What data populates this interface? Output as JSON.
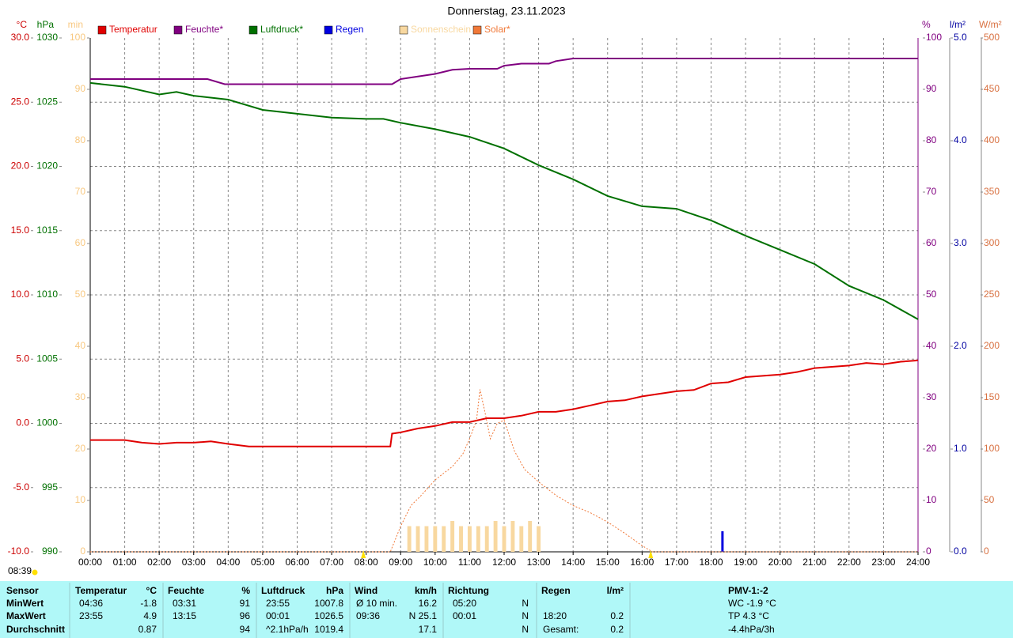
{
  "chart_data": {
    "type": "line",
    "title": "Donnerstag, 23.11.2023",
    "xlim": [
      0,
      24
    ],
    "xticks": [
      {
        "value": 0,
        "label": "00:00"
      },
      {
        "value": 1,
        "label": "01:00"
      },
      {
        "value": 2,
        "label": "02:00"
      },
      {
        "value": 3,
        "label": "03:00"
      },
      {
        "value": 4,
        "label": "04:00"
      },
      {
        "value": 5,
        "label": "05:00"
      },
      {
        "value": 6,
        "label": "06:00"
      },
      {
        "value": 7,
        "label": "07:00"
      },
      {
        "value": 8,
        "label": "08:00"
      },
      {
        "value": 9,
        "label": "09:00"
      },
      {
        "value": 10,
        "label": "10:00"
      },
      {
        "value": 11,
        "label": "11:00"
      },
      {
        "value": 12,
        "label": "12:00"
      },
      {
        "value": 13,
        "label": "13:00"
      },
      {
        "value": 14,
        "label": "14:00"
      },
      {
        "value": 15,
        "label": "15:00"
      },
      {
        "value": 16,
        "label": "16:00"
      },
      {
        "value": 17,
        "label": "17:00"
      },
      {
        "value": 18,
        "label": "18:00"
      },
      {
        "value": 19,
        "label": "19:00"
      },
      {
        "value": 20,
        "label": "20:00"
      },
      {
        "value": 21,
        "label": "21:00"
      },
      {
        "value": 22,
        "label": "22:00"
      },
      {
        "value": 23,
        "label": "23:00"
      },
      {
        "value": 24,
        "label": "24:00"
      }
    ],
    "grid": true,
    "timestamp": "08:39",
    "sun_markers": [
      7.92,
      16.25
    ],
    "axes": [
      {
        "unit": "°C",
        "side": "left",
        "color": "#cc0000",
        "lim": [
          -10,
          30
        ],
        "ticks": [
          {
            "value": 30,
            "label": "30.0"
          },
          {
            "value": 25,
            "label": "25.0"
          },
          {
            "value": 20,
            "label": "20.0"
          },
          {
            "value": 15,
            "label": "15.0"
          },
          {
            "value": 10,
            "label": "10.0"
          },
          {
            "value": 5,
            "label": "5.0"
          },
          {
            "value": 0,
            "label": "0.0"
          },
          {
            "value": -5,
            "label": "-5.0"
          },
          {
            "value": -10,
            "label": "-10.0"
          }
        ],
        "series": [
          {
            "name": "Temperatur",
            "type": "line",
            "color": "#e00000",
            "x": [
              0,
              1,
              1.5,
              2,
              2.5,
              3,
              3.5,
              4,
              4.6,
              5,
              6,
              7,
              8,
              8.7,
              8.75,
              9,
              9.5,
              10,
              10.5,
              11,
              11.5,
              12,
              12.5,
              13,
              13.5,
              14,
              14.5,
              15,
              15.5,
              16,
              16.5,
              17,
              17.5,
              18,
              18.5,
              19,
              19.5,
              20,
              20.5,
              21,
              21.5,
              22,
              22.5,
              23,
              23.5,
              24
            ],
            "values": [
              -1.3,
              -1.3,
              -1.5,
              -1.6,
              -1.5,
              -1.5,
              -1.4,
              -1.6,
              -1.8,
              -1.8,
              -1.8,
              -1.8,
              -1.8,
              -1.8,
              -0.8,
              -0.7,
              -0.4,
              -0.2,
              0.1,
              0.1,
              0.4,
              0.4,
              0.6,
              0.9,
              0.9,
              1.1,
              1.4,
              1.7,
              1.8,
              2.1,
              2.3,
              2.5,
              2.6,
              3.1,
              3.2,
              3.6,
              3.7,
              3.8,
              4.0,
              4.3,
              4.4,
              4.5,
              4.7,
              4.6,
              4.8,
              4.9
            ]
          }
        ]
      },
      {
        "unit": "%",
        "side": "right",
        "color": "#800080",
        "lim": [
          0,
          100
        ],
        "ticks": [
          0,
          10,
          20,
          30,
          40,
          50,
          60,
          70,
          80,
          90,
          100
        ],
        "series": [
          {
            "name": "Feuchte*",
            "type": "line",
            "color": "#800080",
            "x": [
              0,
              3.4,
              3.9,
              8.75,
              9,
              9.5,
              10,
              10.5,
              11,
              11.8,
              12,
              12.5,
              13.3,
              13.5,
              14,
              24
            ],
            "values": [
              92,
              92,
              91,
              91,
              92,
              92.5,
              93,
              93.8,
              94,
              94,
              94.6,
              95,
              95,
              95.5,
              96,
              96
            ]
          }
        ]
      },
      {
        "unit": "hPa",
        "side": "left",
        "color": "#007000",
        "lim": [
          990,
          1030
        ],
        "ticks": [
          1030,
          1025,
          1020,
          1015,
          1010,
          1005,
          1000,
          995,
          990
        ],
        "series": [
          {
            "name": "Luftdruck*",
            "type": "line",
            "color": "#007000",
            "x": [
              0,
              1,
              2,
              2.5,
              3,
              4,
              5,
              6,
              7,
              8,
              8.5,
              9,
              10,
              11,
              12,
              13,
              14,
              15,
              16,
              16.5,
              17,
              18,
              19,
              20,
              21,
              22,
              23,
              24
            ],
            "values": [
              1026.5,
              1026.2,
              1025.6,
              1025.8,
              1025.5,
              1025.2,
              1024.4,
              1024.1,
              1023.8,
              1023.7,
              1023.7,
              1023.4,
              1022.9,
              1022.3,
              1021.4,
              1020.1,
              1019.0,
              1017.7,
              1016.9,
              1016.8,
              1016.7,
              1015.8,
              1014.6,
              1013.5,
              1012.4,
              1010.7,
              1009.6,
              1008.1
            ]
          }
        ]
      },
      {
        "unit": "l/m²",
        "side": "right",
        "color": "#0000a0",
        "lim": [
          0,
          5
        ],
        "ticks": [
          {
            "value": 0,
            "label": "0.0"
          },
          {
            "value": 1,
            "label": "1.0"
          },
          {
            "value": 2,
            "label": "2.0"
          },
          {
            "value": 3,
            "label": "3.0"
          },
          {
            "value": 4,
            "label": "4.0"
          },
          {
            "value": 5,
            "label": "5.0"
          }
        ],
        "series": [
          {
            "name": "Regen",
            "type": "bar",
            "color": "#0000e0",
            "x": [
              18.33
            ],
            "values": [
              0.2
            ]
          }
        ]
      },
      {
        "unit": "min",
        "side": "left",
        "color": "#f8c880",
        "lim": [
          0,
          100
        ],
        "ticks": [
          100,
          90,
          80,
          70,
          60,
          50,
          40,
          30,
          20,
          10,
          0
        ],
        "series": [
          {
            "name": "Sonnenschein",
            "type": "bar",
            "color": "#f8d8a0",
            "x": [
              9.25,
              9.5,
              9.75,
              10,
              10.25,
              10.5,
              10.75,
              11,
              11.25,
              11.5,
              11.75,
              12,
              12.25,
              12.5,
              12.75,
              13
            ],
            "values": [
              5,
              5,
              5,
              5,
              5,
              6,
              5,
              5,
              5,
              5,
              6,
              5,
              6,
              5,
              6,
              5
            ]
          }
        ]
      },
      {
        "unit": "W/m²",
        "side": "right",
        "color": "#d87040",
        "lim": [
          0,
          500
        ],
        "ticks": [
          0,
          50,
          100,
          150,
          200,
          250,
          300,
          350,
          400,
          450,
          500
        ],
        "series": [
          {
            "name": "Solar*",
            "type": "line",
            "style": "dotted",
            "color": "#f07838",
            "x": [
              0,
              8.7,
              9.0,
              9.3,
              9.6,
              10,
              10.5,
              10.8,
              11,
              11.2,
              11.3,
              11.45,
              11.6,
              11.8,
              12,
              12.3,
              12.6,
              13,
              13.5,
              14,
              14.5,
              15,
              15.5,
              16,
              16.3,
              24
            ],
            "values": [
              0,
              0,
              25,
              45,
              55,
              70,
              83,
              95,
              110,
              128,
              158,
              135,
              110,
              125,
              128,
              98,
              80,
              68,
              55,
              45,
              38,
              29,
              18,
              6,
              0,
              0
            ]
          }
        ]
      }
    ]
  },
  "table": {
    "header": [
      "Sensor",
      "Temperatur",
      "°C",
      "Feuchte",
      "%",
      "Luftdruck",
      "hPa",
      "Wind",
      "km/h",
      "Richtung",
      null,
      "Regen",
      "l/m²",
      "PMV-1:-2"
    ],
    "rows": [
      [
        "MinWert",
        "04:36",
        "-1.8",
        "03:31",
        "91",
        "23:55",
        "1007.8",
        "Ø 10 min.",
        "16.2",
        "05:20",
        "N",
        null,
        null,
        "WC -1.9 °C"
      ],
      [
        "MaxWert",
        "23:55",
        "4.9",
        "13:15",
        "96",
        "00:01",
        "1026.5",
        "09:36",
        "N 25.1",
        "00:01",
        "N",
        "18:20",
        "0.2",
        "TP 4.3 °C"
      ],
      [
        "Durchschnitt",
        null,
        "0.87",
        null,
        "94",
        "^2.1hPa/h",
        "1019.4",
        null,
        "17.1",
        null,
        "N",
        "Gesamt:",
        "0.2",
        "-4.4hPa/3h"
      ]
    ]
  }
}
